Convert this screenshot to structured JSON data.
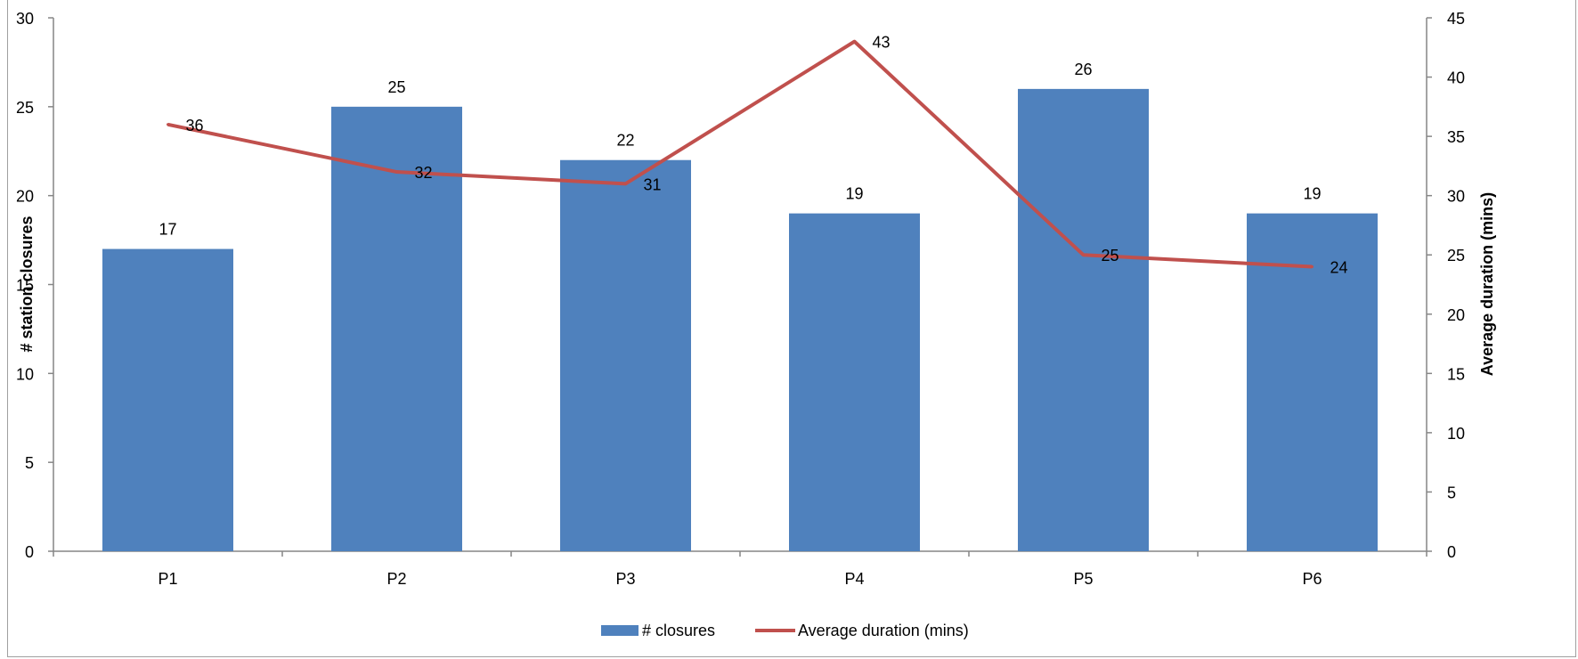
{
  "chart_data": {
    "type": "bar+line",
    "categories": [
      "P1",
      "P2",
      "P3",
      "P4",
      "P5",
      "P6"
    ],
    "series": [
      {
        "name": "# closures",
        "type": "bar",
        "axis": "left",
        "values": [
          17,
          25,
          22,
          19,
          26,
          19
        ],
        "color": "#4F81BD"
      },
      {
        "name": "Average duration (mins)",
        "type": "line",
        "axis": "right",
        "values": [
          36,
          32,
          31,
          43,
          25,
          24
        ],
        "color": "#C0504D"
      }
    ],
    "ylabel_left": "# station closures",
    "ylabel_right": "Average duration (mins)",
    "ylim_left": [
      0,
      30
    ],
    "ylim_right": [
      0,
      45
    ],
    "yticks_left": [
      0,
      5,
      10,
      15,
      20,
      25,
      30
    ],
    "yticks_right": [
      0,
      5,
      10,
      15,
      20,
      25,
      30,
      35,
      40,
      45
    ],
    "grid": false,
    "legend_position": "bottom"
  }
}
